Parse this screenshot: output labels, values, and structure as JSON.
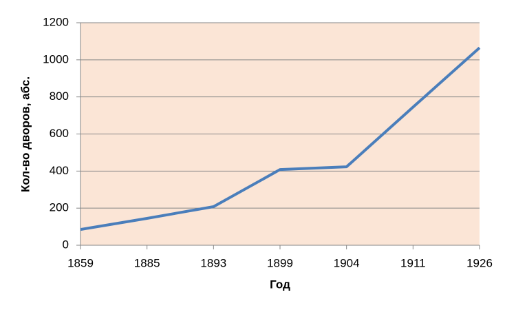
{
  "chart_data": {
    "type": "line",
    "x_label": "Год",
    "y_label": "Кол-во дворов, абс.",
    "categories": [
      "1859",
      "1885",
      "1893",
      "1899",
      "1904",
      "1911",
      "1926"
    ],
    "series": [
      {
        "name": "Кол-во дворов",
        "color": "#4a7ebb",
        "values": [
          85,
          145,
          208,
          408,
          423,
          745,
          1065
        ]
      }
    ],
    "ylim": [
      0,
      1200
    ],
    "yticks": [
      0,
      200,
      400,
      600,
      800,
      1000,
      1200
    ],
    "grid": true,
    "plot_background": "#fbe5d6"
  }
}
